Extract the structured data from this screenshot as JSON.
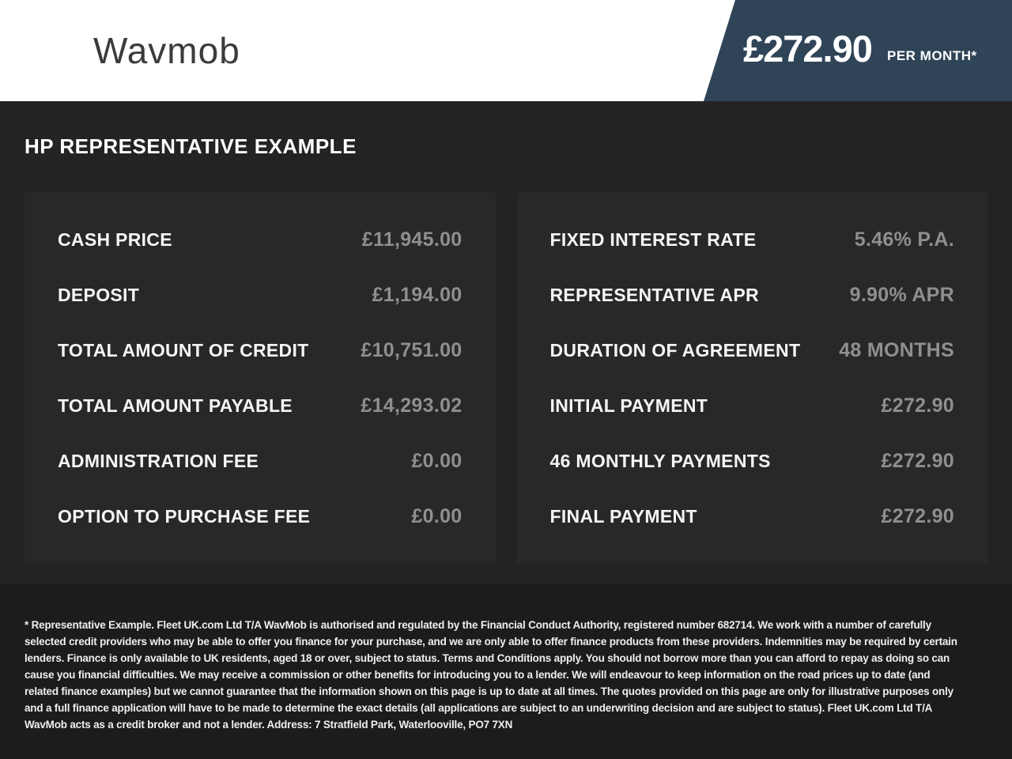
{
  "header": {
    "logo_text": "Wavmob",
    "price_banner": {
      "price": "£272.90",
      "period": "PER MONTH*"
    }
  },
  "page_title": "HP REPRESENTATIVE EXAMPLE",
  "panels": {
    "left": {
      "rows": [
        {
          "label": "CASH PRICE",
          "value": "£11,945.00"
        },
        {
          "label": "DEPOSIT",
          "value": "£1,194.00"
        },
        {
          "label": "TOTAL AMOUNT OF CREDIT",
          "value": "£10,751.00"
        },
        {
          "label": "TOTAL AMOUNT PAYABLE",
          "value": "£14,293.02"
        },
        {
          "label": "ADMINISTRATION FEE",
          "value": "£0.00"
        },
        {
          "label": "OPTION TO PURCHASE FEE",
          "value": "£0.00"
        }
      ]
    },
    "right": {
      "rows": [
        {
          "label": "FIXED INTEREST RATE",
          "value": "5.46% P.A."
        },
        {
          "label": "REPRESENTATIVE APR",
          "value": "9.90% APR"
        },
        {
          "label": "DURATION OF AGREEMENT",
          "value": "48 MONTHS"
        },
        {
          "label": "INITIAL PAYMENT",
          "value": "£272.90"
        },
        {
          "label": "46 MONTHLY PAYMENTS",
          "value": "£272.90"
        },
        {
          "label": "FINAL PAYMENT",
          "value": "£272.90"
        }
      ]
    }
  },
  "disclaimer": "* Representative Example. Fleet UK.com Ltd T/A WavMob is authorised and regulated by the Financial Conduct Authority, registered number 682714. We work with a number of carefully selected credit providers who may be able to offer you finance for your purchase, and we are only able to offer finance products from these providers. Indemnities may be required by certain lenders. Finance is only available to UK residents, aged 18 or over, subject to status. Terms and Conditions apply. You should not borrow more than you can afford to repay as doing so can cause you financial difficulties. We may receive a commission or other benefits for introducing you to a lender. We will endeavour to keep information on the road prices up to date (and related finance examples) but we cannot guarantee that the information shown on this page is up to date at all times. The quotes provided on this page are only for illustrative purposes only and a full finance application will have to be made to determine the exact details (all applications are subject to an underwriting decision and are subject to status). Fleet UK.com Ltd T/A WavMob acts as a credit broker and not a lender. Address: 7 Stratfield Park, Waterlooville, PO7 7XN",
  "colors": {
    "banner_background": "#304458",
    "page_background": "#232325",
    "panel_background": "#28282a",
    "disclaimer_background": "#1c1c1e",
    "label_text": "#f5f5f5",
    "value_text": "#8f8f8f",
    "header_background": "#ffffff",
    "logo_text": "#3b3b3b"
  }
}
